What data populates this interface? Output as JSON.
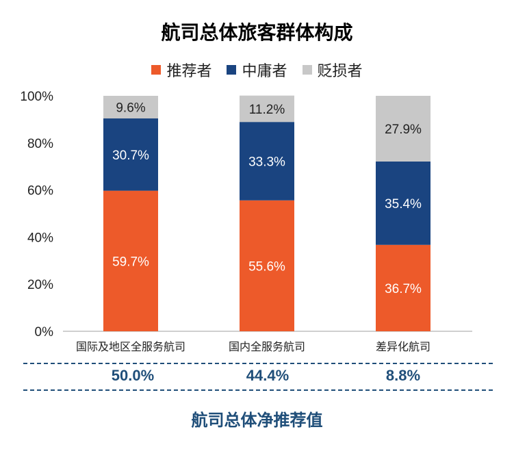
{
  "chart_data": {
    "type": "bar",
    "stacked": true,
    "title": "航司总体旅客群体构成",
    "categories": [
      "国际及地区全服务航司",
      "国内全服务航司",
      "差异化航司"
    ],
    "series": [
      {
        "name": "推荐者",
        "color": "#ed5a2a",
        "values": [
          59.7,
          55.6,
          36.7
        ],
        "labels": [
          "59.7%",
          "55.6%",
          "36.7%"
        ]
      },
      {
        "name": "中庸者",
        "color": "#1a4480",
        "values": [
          30.7,
          33.3,
          35.4
        ],
        "labels": [
          "30.7%",
          "33.3%",
          "35.4%"
        ]
      },
      {
        "name": "贬损者",
        "color": "#c8c8c8",
        "values": [
          9.6,
          11.2,
          27.9
        ],
        "labels": [
          "9.6%",
          "11.2%",
          "27.9%"
        ]
      }
    ],
    "ylim": [
      0,
      100
    ],
    "yticks": [
      "0%",
      "20%",
      "40%",
      "60%",
      "80%",
      "100%"
    ],
    "legend": "top"
  },
  "nps": {
    "values": [
      "50.0%",
      "44.4%",
      "8.8%"
    ],
    "label": "航司总体净推荐值"
  }
}
